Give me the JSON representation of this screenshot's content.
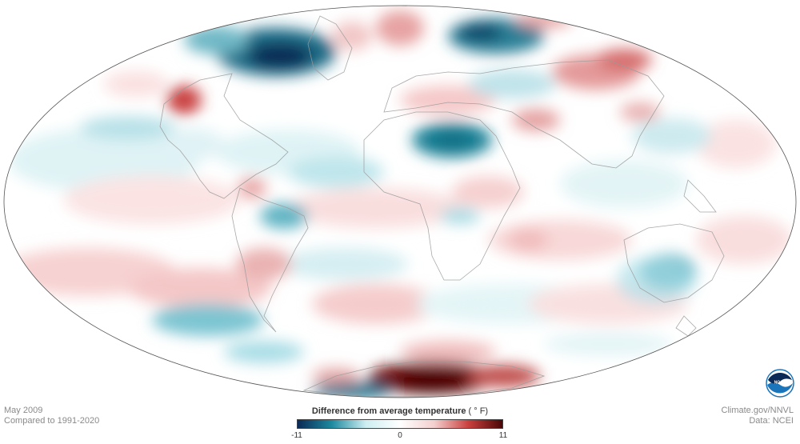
{
  "map": {
    "projection": "mollweide-like",
    "colors": {
      "cold_extreme": "#0b2a55",
      "cold_mid": "#1d8aa0",
      "cold_light": "#cdeef2",
      "neutral": "#ffffff",
      "warm_light": "#f4cfcf",
      "warm_mid": "#c9413f",
      "warm_extreme": "#4a0606",
      "coast": "#9a9a9a",
      "outline": "#555555"
    }
  },
  "caption": {
    "date": "May 2009",
    "baseline": "Compared to 1991-2020"
  },
  "credits": {
    "site": "Climate.gov/NNVL",
    "data": "Data: NCEI"
  },
  "legend": {
    "title": "Difference from average temperature",
    "unit": "( ° F)",
    "min_label": "-11",
    "mid_label": "0",
    "max_label": "11",
    "range": [
      -11,
      11
    ]
  },
  "logo": {
    "text": "NOAA",
    "icon": "noaa-logo-icon"
  }
}
